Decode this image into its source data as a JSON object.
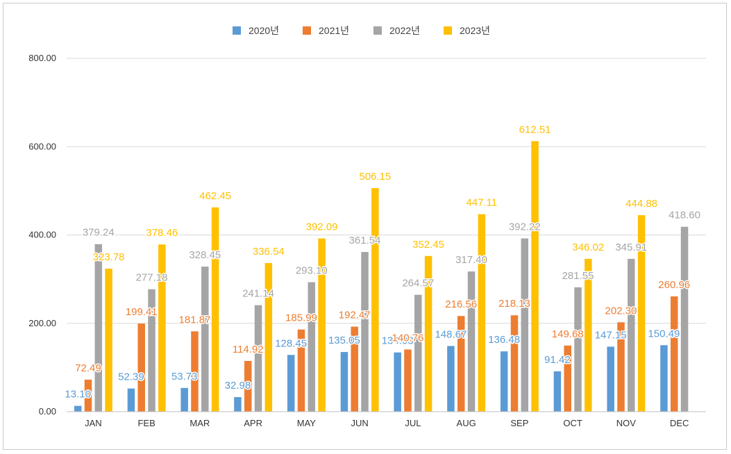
{
  "chart_data": {
    "type": "bar",
    "categories": [
      "JAN",
      "FEB",
      "MAR",
      "APR",
      "MAY",
      "JUN",
      "JUL",
      "AUG",
      "SEP",
      "OCT",
      "NOV",
      "DEC"
    ],
    "series": [
      {
        "name": "2020년",
        "color": "#5B9BD5",
        "values": [
          13.1,
          52.39,
          53.73,
          32.98,
          128.45,
          135.05,
          134.03,
          148.67,
          136.48,
          91.42,
          147.15,
          150.49
        ],
        "labels": [
          "13.10",
          "52.39",
          "53.73",
          "32.98",
          "128.45",
          "135.05",
          "134.03",
          "148.67",
          "136.48",
          "91.42",
          "147.15",
          "150.49"
        ]
      },
      {
        "name": "2021년",
        "color": "#ED7D31",
        "values": [
          72.49,
          199.41,
          181.87,
          114.92,
          185.99,
          192.47,
          140.76,
          216.56,
          218.13,
          149.68,
          202.3,
          260.96
        ],
        "labels": [
          "72.49",
          "199.41",
          "181.87",
          "114.92",
          "185.99",
          "192.47",
          "140.76",
          "216.56",
          "218.13",
          "149.68",
          "202.30",
          "260.96"
        ]
      },
      {
        "name": "2022년",
        "color": "#A5A5A5",
        "values": [
          379.24,
          277.18,
          328.45,
          241.14,
          293.1,
          361.54,
          264.57,
          317.4,
          392.22,
          281.55,
          345.91,
          418.6
        ],
        "labels": [
          "379.24",
          "277.18",
          "328.45",
          "241.14",
          "293.10",
          "361.54",
          "264.57",
          "317.40",
          "392.22",
          "281.55",
          "345.91",
          "418.60"
        ]
      },
      {
        "name": "2023년",
        "color": "#FFC000",
        "values": [
          323.78,
          378.46,
          462.45,
          336.54,
          392.09,
          506.15,
          352.45,
          447.11,
          612.51,
          346.02,
          444.88,
          null
        ],
        "labels": [
          "323.78",
          "378.46",
          "462.45",
          "336.54",
          "392.09",
          "506.15",
          "352.45",
          "447.11",
          "612.51",
          "346.02",
          "444.88",
          null
        ]
      }
    ],
    "yticks": [
      "0.00",
      "200.00",
      "400.00",
      "600.00",
      "800.00"
    ],
    "ylim": [
      0,
      800
    ],
    "legend_position": "top",
    "grid": true,
    "gridline_color": "#d9d9d9",
    "axis_color": "#bfbfbf"
  }
}
